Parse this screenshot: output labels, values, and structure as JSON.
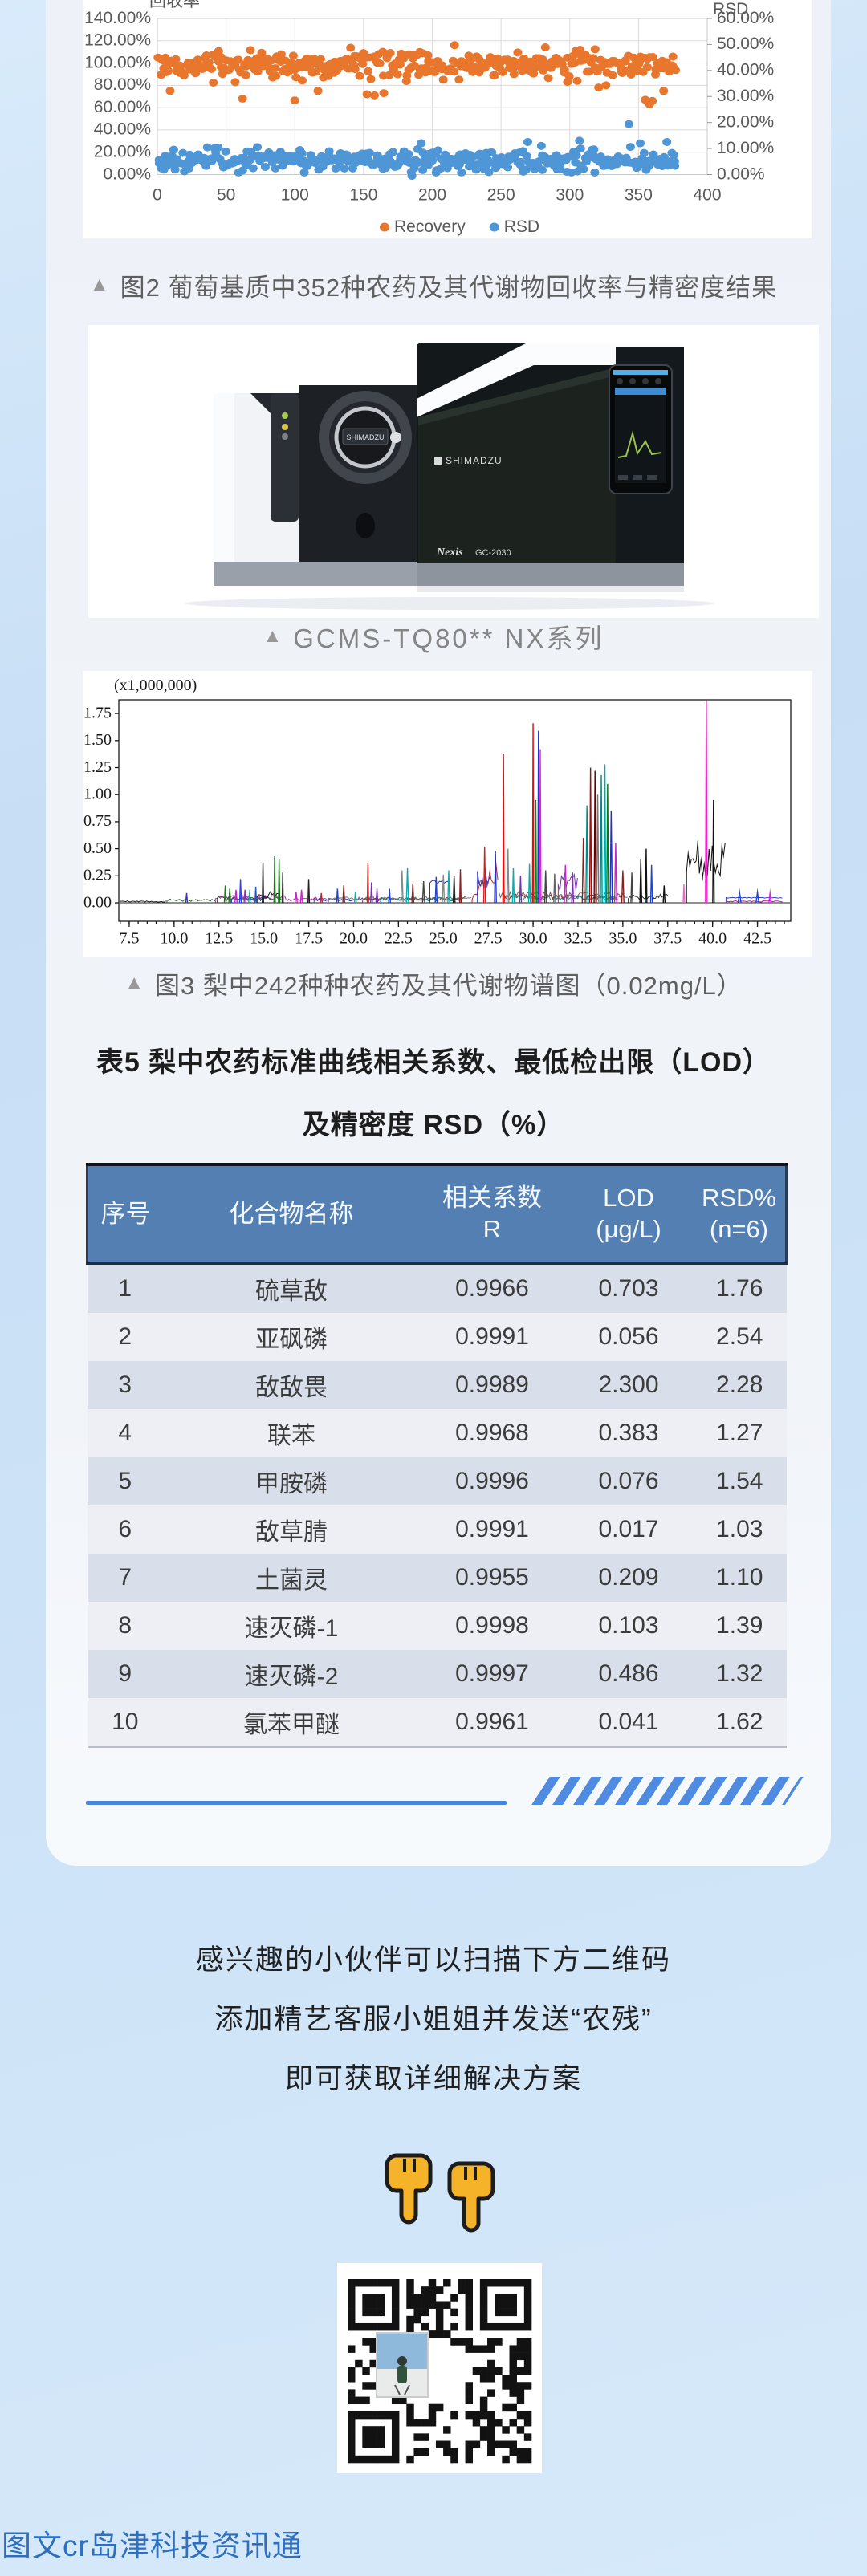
{
  "figure2": {
    "marker": "▲",
    "caption": "图2 葡萄基质中352种农药及其代谢物回收率与精密度结果"
  },
  "instrument": {
    "marker": "▲",
    "caption": "GCMS-TQ80** NX系列",
    "brand": "SHIMADZU",
    "door_plate": "SHIMADZU",
    "series_name": "Nexis",
    "model": "GC-2030"
  },
  "figure3": {
    "marker": "▲",
    "caption": "图3 梨中242种种农药及其代谢物谱图（0.02mg/L）"
  },
  "table": {
    "title_line1": "表5 梨中农药标准曲线相关系数、最低检出限（LOD）",
    "title_line2": "及精密度 RSD（%）",
    "columns": [
      {
        "label": "序号",
        "sub": ""
      },
      {
        "label": "化合物名称",
        "sub": ""
      },
      {
        "label": "相关系数",
        "sub": "R"
      },
      {
        "label": "LOD",
        "sub": "(μg/L)"
      },
      {
        "label": "RSD%",
        "sub": "(n=6)"
      }
    ],
    "rows": [
      [
        "1",
        "硫草敌",
        "0.9966",
        "0.703",
        "1.76"
      ],
      [
        "2",
        "亚砜磷",
        "0.9991",
        "0.056",
        "2.54"
      ],
      [
        "3",
        "敌敌畏",
        "0.9989",
        "2.300",
        "2.28"
      ],
      [
        "4",
        "联苯",
        "0.9968",
        "0.383",
        "1.27"
      ],
      [
        "5",
        "甲胺磷",
        "0.9996",
        "0.076",
        "1.54"
      ],
      [
        "6",
        "敌草腈",
        "0.9991",
        "0.017",
        "1.03"
      ],
      [
        "7",
        "土菌灵",
        "0.9955",
        "0.209",
        "1.10"
      ],
      [
        "8",
        "速灭磷-1",
        "0.9998",
        "0.103",
        "1.39"
      ],
      [
        "9",
        "速灭磷-2",
        "0.9997",
        "0.486",
        "1.32"
      ],
      [
        "10",
        "氯苯甲醚",
        "0.9961",
        "0.041",
        "1.62"
      ]
    ]
  },
  "cta": {
    "lines": [
      "感兴趣的小伙伴可以扫描下方二维码",
      "添加精艺客服小姐姐并发送“农残”",
      "即可获取详细解决方案"
    ]
  },
  "qr": {
    "modules": 25,
    "seed": 987654,
    "fill_probability": 0.47
  },
  "footer": {
    "credit": "图文cr岛津科技资讯通"
  },
  "chart_data": [
    {
      "type": "scatter",
      "title": "",
      "left_axis": {
        "label": "回收率",
        "ticks": [
          "140.00%",
          "120.00%",
          "100.00%",
          "80.00%",
          "60.00%",
          "40.00%",
          "20.00%",
          "0.00%"
        ],
        "min": 0,
        "max": 1.4
      },
      "right_axis": {
        "label": "RSD",
        "ticks": [
          "60.00%",
          "50.00%",
          "40.00%",
          "30.00%",
          "20.00%",
          "10.00%",
          "0.00%"
        ],
        "min": 0,
        "max": 0.6
      },
      "x_axis": {
        "tick_labels": [
          "0",
          "50",
          "100",
          "150",
          "200",
          "250",
          "300",
          "350",
          "400"
        ],
        "min": 0,
        "max": 400
      },
      "grid": true,
      "legend_position": "bottom",
      "legend": [
        {
          "name": "Recovery",
          "color": "#e8762d"
        },
        {
          "name": "RSD",
          "color": "#4e96d6"
        }
      ],
      "series": [
        {
          "name": "Recovery",
          "axis": "left",
          "color": "#e8762d",
          "n": 376,
          "seed": 20240501,
          "x_range": [
            1,
            377
          ],
          "center": 0.985,
          "spread": 0.06,
          "clamp": [
            0.78,
            1.18
          ],
          "outliers": [
            [
              10,
              0.75
            ],
            [
              62,
              0.68
            ],
            [
              100,
              0.665
            ],
            [
              116,
              0.75
            ],
            [
              152,
              0.72
            ],
            [
              158,
              0.71
            ],
            [
              165,
              0.73
            ],
            [
              306,
              0.84
            ],
            [
              321,
              0.78
            ],
            [
              326,
              0.8
            ],
            [
              355,
              0.67
            ],
            [
              358,
              0.63
            ],
            [
              360,
              0.66
            ],
            [
              368,
              0.75
            ]
          ]
        },
        {
          "name": "RSD",
          "axis": "right",
          "color": "#4e96d6",
          "n": 376,
          "seed": 777,
          "x_range": [
            1,
            377
          ],
          "center": 0.055,
          "spread": 0.022,
          "clamp": [
            0.008,
            0.135
          ],
          "outliers": [
            [
              185,
              -0.005
            ],
            [
              270,
              0.125
            ],
            [
              307,
              0.13
            ],
            [
              343,
              0.194
            ],
            [
              352,
              0.12
            ],
            [
              370,
              0.125
            ]
          ]
        }
      ]
    },
    {
      "type": "line",
      "title": "",
      "unit_label": "(x1,000,000)",
      "y_ticks": [
        "1.75",
        "1.50",
        "1.25",
        "1.00",
        "0.75",
        "0.50",
        "0.25",
        "0.00"
      ],
      "y_step": 0.25,
      "y_frame_max": 1.87,
      "x_tick_labels": [
        "7.5",
        "10.0",
        "12.5",
        "15.0",
        "17.5",
        "20.0",
        "22.5",
        "25.0",
        "27.5",
        "30.0",
        "32.5",
        "35.0",
        "37.5",
        "40.0",
        "42.5"
      ],
      "x_range": [
        6.92,
        44.35
      ],
      "peaks": [
        [
          10.7,
          0.09,
          0.05,
          "#3333cc"
        ],
        [
          12.85,
          0.16,
          0.05,
          "#1a7a1a"
        ],
        [
          13.1,
          0.13,
          0.05,
          "#1a7a1a"
        ],
        [
          13.45,
          0.12,
          0.06,
          "#cc22cc"
        ],
        [
          13.7,
          0.22,
          0.05,
          "#3344dd"
        ],
        [
          13.95,
          0.12,
          0.05,
          "#8833aa"
        ],
        [
          14.2,
          0.08,
          0.05,
          "#11aaaa"
        ],
        [
          14.55,
          0.15,
          0.04,
          "#2255cc"
        ],
        [
          14.95,
          0.37,
          0.03,
          "#111111"
        ],
        [
          15.6,
          0.43,
          0.035,
          "#1a7a1a"
        ],
        [
          15.85,
          0.4,
          0.035,
          "#1a7a1a"
        ],
        [
          16.05,
          0.28,
          0.03,
          "#333333"
        ],
        [
          16.8,
          0.1,
          0.06,
          "#cc22cc"
        ],
        [
          17.1,
          0.12,
          0.06,
          "#cc22cc"
        ],
        [
          17.5,
          0.22,
          0.04,
          "#222222"
        ],
        [
          18.2,
          0.09,
          0.05,
          "#cc2222"
        ],
        [
          19.1,
          0.13,
          0.05,
          "#2244cc"
        ],
        [
          19.45,
          0.16,
          0.05,
          "#882222"
        ],
        [
          20.1,
          0.1,
          0.05,
          "#11aaaa"
        ],
        [
          20.8,
          0.37,
          0.035,
          "#cc2222"
        ],
        [
          21.0,
          0.19,
          0.05,
          "#7733aa"
        ],
        [
          21.3,
          0.13,
          0.05,
          "#7733aa"
        ],
        [
          22.0,
          0.13,
          0.05,
          "#2244cc"
        ],
        [
          22.7,
          0.3,
          0.06,
          "#888888"
        ],
        [
          23.0,
          0.32,
          0.06,
          "#11aaaa"
        ],
        [
          23.3,
          0.18,
          0.05,
          "#882222"
        ],
        [
          23.9,
          0.2,
          0.06,
          "#444444"
        ],
        [
          24.6,
          0.24,
          0.05,
          "#2244cc"
        ],
        [
          25.0,
          0.26,
          0.06,
          "#888888"
        ],
        [
          25.3,
          0.3,
          0.05,
          "#11aaaa"
        ],
        [
          25.6,
          0.25,
          0.05,
          "#222222"
        ],
        [
          25.95,
          0.31,
          0.04,
          "#882222"
        ],
        [
          27.3,
          0.52,
          0.05,
          "#cc2222"
        ],
        [
          27.9,
          0.48,
          0.05,
          "#2233bb"
        ],
        [
          28.35,
          1.38,
          0.035,
          "#dd1111"
        ],
        [
          28.6,
          0.5,
          0.05,
          "#888888"
        ],
        [
          28.9,
          0.32,
          0.05,
          "#11aaaa"
        ],
        [
          29.3,
          0.25,
          0.05,
          "#7733aa"
        ],
        [
          29.8,
          0.36,
          0.05,
          "#11aaaa"
        ],
        [
          30.0,
          1.66,
          0.035,
          "#dd1111"
        ],
        [
          30.15,
          0.95,
          0.04,
          "#1a7a1a"
        ],
        [
          30.3,
          1.59,
          0.035,
          "#2233cc"
        ],
        [
          30.4,
          1.42,
          0.04,
          "#dd22dd"
        ],
        [
          30.7,
          0.3,
          0.05,
          "#444444"
        ],
        [
          31.2,
          0.27,
          0.05,
          "#666666"
        ],
        [
          31.8,
          0.35,
          0.06,
          "#cc22cc"
        ],
        [
          32.2,
          0.28,
          0.05,
          "#7733aa"
        ],
        [
          32.8,
          0.6,
          0.06,
          "#882222"
        ],
        [
          33.0,
          0.9,
          0.06,
          "#008888"
        ],
        [
          33.2,
          1.25,
          0.05,
          "#991111"
        ],
        [
          33.45,
          1.22,
          0.05,
          "#660000"
        ],
        [
          33.6,
          1.0,
          0.06,
          "#777777"
        ],
        [
          33.8,
          1.18,
          0.05,
          "#008888"
        ],
        [
          34.0,
          1.28,
          0.05,
          "#00aaaa"
        ],
        [
          34.15,
          1.1,
          0.05,
          "#117711"
        ],
        [
          34.35,
          0.85,
          0.06,
          "#2233bb"
        ],
        [
          34.6,
          0.55,
          0.06,
          "#cc22cc"
        ],
        [
          35.0,
          0.3,
          0.06,
          "#882222"
        ],
        [
          35.5,
          0.28,
          0.05,
          "#444444"
        ],
        [
          36.0,
          0.4,
          0.05,
          "#111111"
        ],
        [
          36.3,
          0.5,
          0.04,
          "#111111"
        ],
        [
          36.6,
          0.35,
          0.05,
          "#2244cc"
        ],
        [
          37.3,
          0.16,
          0.05,
          "#111111"
        ],
        [
          38.4,
          0.17,
          0.04,
          "#ee66cc"
        ],
        [
          39.65,
          1.95,
          0.045,
          "#ee22cc"
        ],
        [
          40.05,
          0.95,
          0.04,
          "#111111"
        ],
        [
          41.5,
          0.1,
          0.08,
          "#2244cc"
        ],
        [
          42.5,
          0.1,
          0.08,
          "#2244cc"
        ],
        [
          43.2,
          0.09,
          0.06,
          "#dd22dd"
        ]
      ],
      "noise_bands": [
        {
          "x0": 6.95,
          "x1": 9.6,
          "amp": 0.018,
          "color": "#222222"
        },
        {
          "x0": 9.6,
          "x1": 12.3,
          "amp": 0.035,
          "color": "#226622"
        },
        {
          "x0": 12.3,
          "x1": 16.3,
          "amp": 0.07,
          "color": "#aa22aa"
        },
        {
          "x0": 12.4,
          "x1": 16.0,
          "amp": 0.06,
          "color": "#226622"
        },
        {
          "x0": 13.2,
          "x1": 15.2,
          "amp": 0.05,
          "color": "#3344bb"
        },
        {
          "x0": 14.65,
          "x1": 15.95,
          "amp": 0.11,
          "color": "#111111"
        },
        {
          "x0": 16.3,
          "x1": 18.6,
          "amp": 0.05,
          "color": "#bb33bb"
        },
        {
          "x0": 17.8,
          "x1": 21.5,
          "amp": 0.045,
          "color": "#3344bb"
        },
        {
          "x0": 18.6,
          "x1": 26.6,
          "amp": 0.06,
          "color": "#777777"
        },
        {
          "x0": 20.5,
          "x1": 26.3,
          "amp": 0.05,
          "color": "#993333"
        },
        {
          "x0": 21.5,
          "x1": 26.0,
          "amp": 0.05,
          "color": "#118888"
        },
        {
          "x0": 24.25,
          "x1": 25.35,
          "amp": 0.21,
          "color": "#2233bb",
          "flat": true
        },
        {
          "x0": 26.6,
          "x1": 28.05,
          "amp": 0.5,
          "color": "#cc2222",
          "rise": true
        },
        {
          "x0": 26.9,
          "x1": 27.7,
          "amp": 0.32,
          "color": "#2233bb"
        },
        {
          "x0": 28.1,
          "x1": 35.3,
          "amp": 0.1,
          "color": "#666666"
        },
        {
          "x0": 28.4,
          "x1": 35.0,
          "amp": 0.08,
          "color": "#aa2222"
        },
        {
          "x0": 29.0,
          "x1": 34.8,
          "amp": 0.07,
          "color": "#118888"
        },
        {
          "x0": 31.4,
          "x1": 32.5,
          "amp": 0.3,
          "color": "#7733aa"
        },
        {
          "x0": 35.3,
          "x1": 37.6,
          "amp": 0.08,
          "color": "#333333"
        },
        {
          "x0": 38.55,
          "x1": 40.7,
          "amp": 0.58,
          "color": "#111111"
        },
        {
          "x0": 40.75,
          "x1": 43.9,
          "amp": 0.05,
          "color": "#3344bb",
          "flat": true
        },
        {
          "x0": 40.75,
          "x1": 43.9,
          "amp": 0.02,
          "color": "#aa22aa"
        }
      ]
    }
  ]
}
